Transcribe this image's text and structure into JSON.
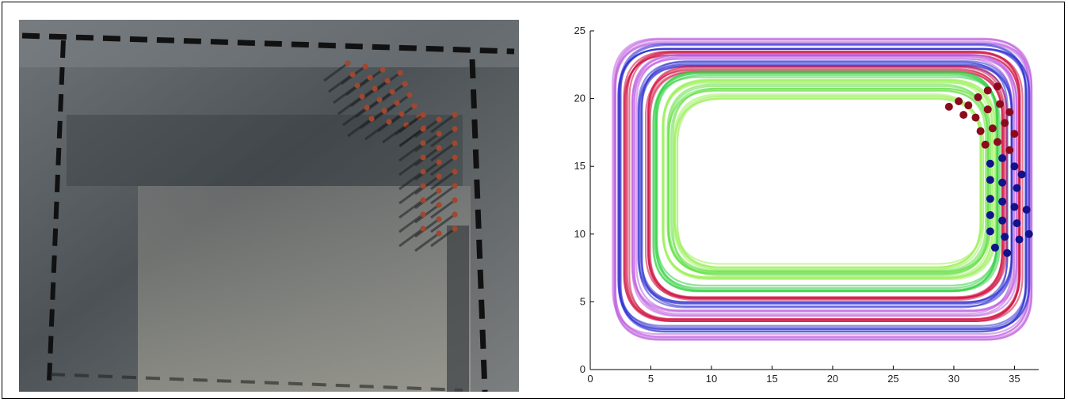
{
  "photo": {
    "description_icon": "overhead-crowd-photo-icon",
    "colors": {
      "floor": "#5a5f63",
      "tape": "#111111",
      "person": "#a0472f"
    }
  },
  "chart_data": {
    "type": "line",
    "title": "",
    "xlabel": "",
    "ylabel": "",
    "xlim": [
      0,
      37
    ],
    "ylim": [
      0,
      25
    ],
    "xticks": [
      0,
      5,
      10,
      15,
      20,
      25,
      30,
      35
    ],
    "yticks": [
      0,
      5,
      10,
      15,
      20,
      25
    ],
    "grid": false,
    "legend": "none",
    "series": [
      {
        "color": "#c060e0",
        "values": []
      },
      {
        "color": "#3030d0",
        "values": []
      },
      {
        "color": "#d01040",
        "values": []
      },
      {
        "color": "#30d040",
        "values": []
      },
      {
        "color": "#a0f060",
        "values": []
      }
    ],
    "track_loops": [
      {
        "x": [
          2.0,
          36.4
        ],
        "y": [
          2.4,
          24.2
        ],
        "color": "#c060e0"
      },
      {
        "x": [
          2.5,
          36.0
        ],
        "y": [
          3.0,
          23.8
        ],
        "color": "#3030d0"
      },
      {
        "x": [
          3.0,
          35.5
        ],
        "y": [
          3.6,
          23.4
        ],
        "color": "#d01040"
      },
      {
        "x": [
          3.6,
          35.0
        ],
        "y": [
          4.2,
          23.0
        ],
        "color": "#c060e0"
      },
      {
        "x": [
          4.2,
          34.6
        ],
        "y": [
          4.8,
          22.6
        ],
        "color": "#3030d0"
      },
      {
        "x": [
          4.8,
          34.2
        ],
        "y": [
          5.4,
          22.2
        ],
        "color": "#d01040"
      },
      {
        "x": [
          5.4,
          33.6
        ],
        "y": [
          6.0,
          21.8
        ],
        "color": "#30d040"
      },
      {
        "x": [
          6.0,
          33.2
        ],
        "y": [
          6.6,
          21.2
        ],
        "color": "#a0f060"
      },
      {
        "x": [
          6.6,
          32.8
        ],
        "y": [
          7.2,
          20.8
        ],
        "color": "#60e040"
      },
      {
        "x": [
          7.0,
          32.4
        ],
        "y": [
          7.6,
          20.2
        ],
        "color": "#a0f060"
      }
    ],
    "markers_red": [
      [
        29.6,
        19.4
      ],
      [
        30.4,
        19.8
      ],
      [
        31.2,
        19.5
      ],
      [
        32.0,
        20.1
      ],
      [
        32.8,
        20.6
      ],
      [
        33.6,
        20.9
      ],
      [
        30.8,
        18.8
      ],
      [
        31.8,
        18.6
      ],
      [
        32.8,
        19.2
      ],
      [
        33.8,
        19.6
      ],
      [
        34.6,
        19.0
      ],
      [
        32.2,
        17.6
      ],
      [
        33.2,
        17.8
      ],
      [
        34.2,
        18.2
      ],
      [
        35.0,
        17.4
      ],
      [
        32.6,
        16.6
      ],
      [
        33.6,
        16.8
      ],
      [
        34.6,
        16.2
      ]
    ],
    "markers_blue": [
      [
        33.0,
        15.2
      ],
      [
        34.0,
        15.6
      ],
      [
        35.0,
        15.0
      ],
      [
        35.6,
        14.4
      ],
      [
        33.0,
        14.0
      ],
      [
        34.0,
        13.8
      ],
      [
        35.2,
        13.4
      ],
      [
        33.0,
        12.6
      ],
      [
        34.0,
        12.4
      ],
      [
        35.0,
        12.0
      ],
      [
        36.0,
        11.8
      ],
      [
        33.0,
        11.4
      ],
      [
        34.0,
        11.0
      ],
      [
        35.2,
        10.8
      ],
      [
        33.0,
        10.2
      ],
      [
        34.2,
        9.8
      ],
      [
        35.4,
        9.6
      ],
      [
        36.2,
        10.0
      ],
      [
        33.4,
        9.0
      ],
      [
        34.4,
        8.6
      ]
    ]
  }
}
